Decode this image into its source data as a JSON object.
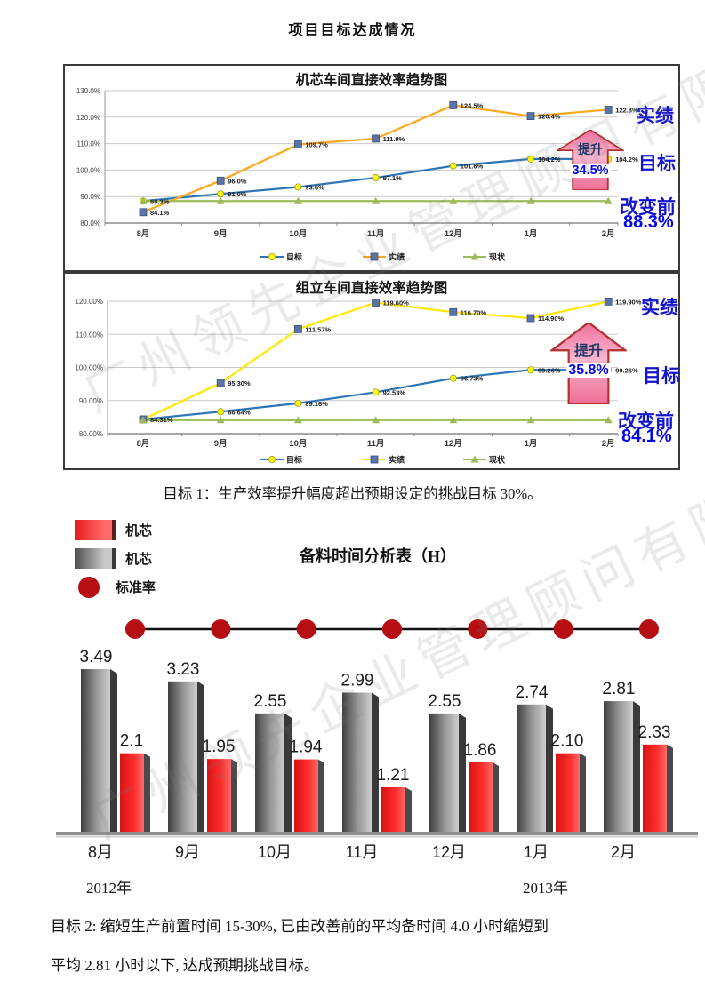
{
  "page": {
    "title": "项目目标达成情况",
    "watermark": "广州领先企业管理顾问有限公司"
  },
  "captions": {
    "goal1": "目标 1：生产效率提升幅度超出预期设定的挑战目标 30%。",
    "goal2_line1": "目标 2: 缩短生产前置时间 15-30%, 已由改善前的平均备时间 4.0 小时缩短到",
    "goal2_line2": "平均 2.81 小时以下, 达成预期挑战目标。"
  },
  "chart_data": [
    {
      "type": "line",
      "title": "机芯车间直接效率趋势图",
      "categories": [
        "8月",
        "9月",
        "10月",
        "11月",
        "12月",
        "1月",
        "2月"
      ],
      "ylim": [
        80,
        130
      ],
      "yticks": [
        "130.0%",
        "120.0%",
        "110.0%",
        "100.0%",
        "90.0%",
        "80.0%"
      ],
      "grid": true,
      "legend_position": "bottom",
      "series": [
        {
          "name": "目标",
          "marker": "circle",
          "line_color": "#2E75B6",
          "marker_color": "#FFFF00",
          "values": [
            88.3,
            91.0,
            93.6,
            97.1,
            101.6,
            104.2,
            104.2
          ],
          "labels": [
            "",
            "91.0%",
            "93.6%",
            "97.1%",
            "101.6%",
            "104.2%",
            "104.2%"
          ]
        },
        {
          "name": "实绩",
          "marker": "square",
          "line_color": "#FBA81C",
          "marker_color": "#5B73A8",
          "values": [
            84.1,
            96.0,
            109.7,
            111.9,
            124.5,
            120.4,
            122.8
          ],
          "labels": [
            "84.1%",
            "96.0%",
            "109.7%",
            "111.9%",
            "124.5%",
            "120.4%",
            "122.8%"
          ]
        },
        {
          "name": "现状",
          "marker": "triangle",
          "line_color": "#9BBB59",
          "marker_color": "#9BBB59",
          "values": [
            88.3,
            88.3,
            88.3,
            88.3,
            88.3,
            88.3,
            88.3
          ],
          "labels": [
            "88.3%",
            "",
            "",
            "",
            "",
            "",
            ""
          ]
        }
      ],
      "annotations": {
        "actual": "实绩",
        "improve": "提升",
        "improve_pct": "34.5%",
        "target": "目标",
        "before": "改变前",
        "before_value": "88.3%"
      }
    },
    {
      "type": "line",
      "title": "组立车间直接效率趋势图",
      "categories": [
        "8月",
        "9月",
        "10月",
        "11月",
        "12月",
        "1月",
        "2月"
      ],
      "ylim": [
        80,
        120
      ],
      "yticks": [
        "120.00%",
        "110.00%",
        "100.00%",
        "90.00%",
        "80.00%"
      ],
      "grid": true,
      "legend_position": "bottom",
      "series": [
        {
          "name": "目标",
          "marker": "circle",
          "line_color": "#2E75B6",
          "marker_color": "#FFFF00",
          "values": [
            84.31,
            86.64,
            89.16,
            92.53,
            96.73,
            99.26,
            99.26
          ],
          "labels": [
            "",
            "86.64%",
            "89.16%",
            "92.53%",
            "96.73%",
            "99.26%",
            "99.26%"
          ]
        },
        {
          "name": "实绩",
          "marker": "square",
          "line_color": "#FFE800",
          "marker_color": "#5B73A8",
          "values": [
            84.31,
            95.3,
            111.57,
            119.6,
            116.7,
            114.9,
            119.9
          ],
          "labels": [
            "84.31%",
            "95.30%",
            "111.57%",
            "119.60%",
            "116.70%",
            "114.90%",
            "119.90%"
          ]
        },
        {
          "name": "现状",
          "marker": "triangle",
          "line_color": "#9BBB59",
          "marker_color": "#9BBB59",
          "values": [
            84.1,
            84.1,
            84.1,
            84.1,
            84.1,
            84.1,
            84.1
          ],
          "labels": [
            "",
            "",
            "",
            "",
            "",
            "",
            ""
          ]
        }
      ],
      "annotations": {
        "actual": "实绩",
        "improve": "提升",
        "improve_pct": "35.8%",
        "target": "目标",
        "before": "改变前",
        "before_value": "84.1%"
      }
    },
    {
      "type": "bar",
      "title": "备料时间分析表（H）",
      "categories": [
        "8月",
        "9月",
        "10月",
        "11月",
        "12月",
        "1月",
        "2月"
      ],
      "years": [
        {
          "label": "2012年"
        },
        {
          "label": "2013年"
        }
      ],
      "legend": [
        {
          "label": "机芯",
          "swatch": "red"
        },
        {
          "label": "机芯",
          "swatch": "gray"
        },
        {
          "label": "标准率",
          "swatch": "dot"
        }
      ],
      "series": [
        {
          "name": "机芯",
          "color": "#808080",
          "values": [
            3.49,
            3.23,
            2.55,
            2.99,
            2.55,
            2.74,
            2.81
          ],
          "labels": [
            "3.49",
            "3.23",
            "2.55",
            "2.99",
            "2.55",
            "2.74",
            "2.81"
          ]
        },
        {
          "name": "机芯",
          "color": "#FF2A2A",
          "values": [
            2.1,
            1.95,
            1.94,
            1.21,
            1.86,
            2.1,
            2.33
          ],
          "labels": [
            "2.1",
            "1.95",
            "1.94",
            "1.21",
            "1.86",
            "2.10",
            "2.33"
          ]
        },
        {
          "name": "标准率",
          "color": "#B60E13",
          "style": "dot-line"
        }
      ]
    }
  ]
}
